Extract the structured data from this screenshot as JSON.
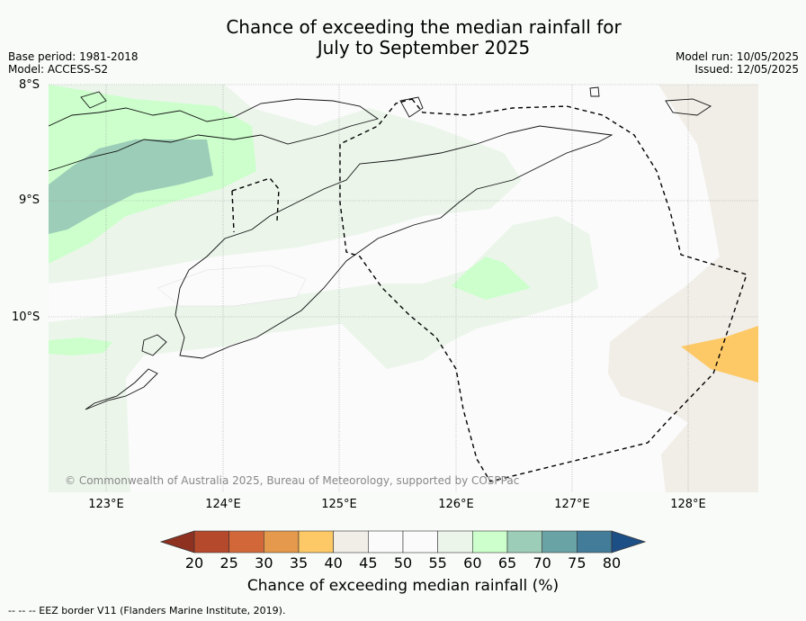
{
  "title_line1": "Chance of exceeding the median rainfall for",
  "title_line2": "July to September 2025",
  "base_period": "Base period: 1981-2018",
  "model": "Model: ACCESS-S2",
  "model_run": "Model run: 10/05/2025",
  "issued": "Issued: 12/05/2025",
  "lat_labels": [
    "8°S",
    "9°S",
    "10°S"
  ],
  "lon_labels": [
    "123°E",
    "124°E",
    "125°E",
    "126°E",
    "127°E",
    "128°E"
  ],
  "copyright": "© Commonwealth of Australia 2025, Bureau of Meteorology, supported by COSPPac",
  "colorbar": {
    "ticks": [
      "20",
      "25",
      "30",
      "35",
      "40",
      "45",
      "50",
      "55",
      "60",
      "65",
      "70",
      "75",
      "80"
    ],
    "colors": [
      "#b5492b",
      "#d2683a",
      "#e4994c",
      "#fdc966",
      "#f1ede7",
      "#fafbfa",
      "#fafbfa",
      "#ebf5ea",
      "#ccffcc",
      "#9ccdb8",
      "#6aa3a6",
      "#437c98"
    ],
    "under_color": "#8e3121",
    "over_color": "#1d4f87",
    "label": "Chance of exceeding median rainfall (%)"
  },
  "footnote": "--  --  -- EEZ border V11 (Flanders Marine Institute, 2019)."
}
